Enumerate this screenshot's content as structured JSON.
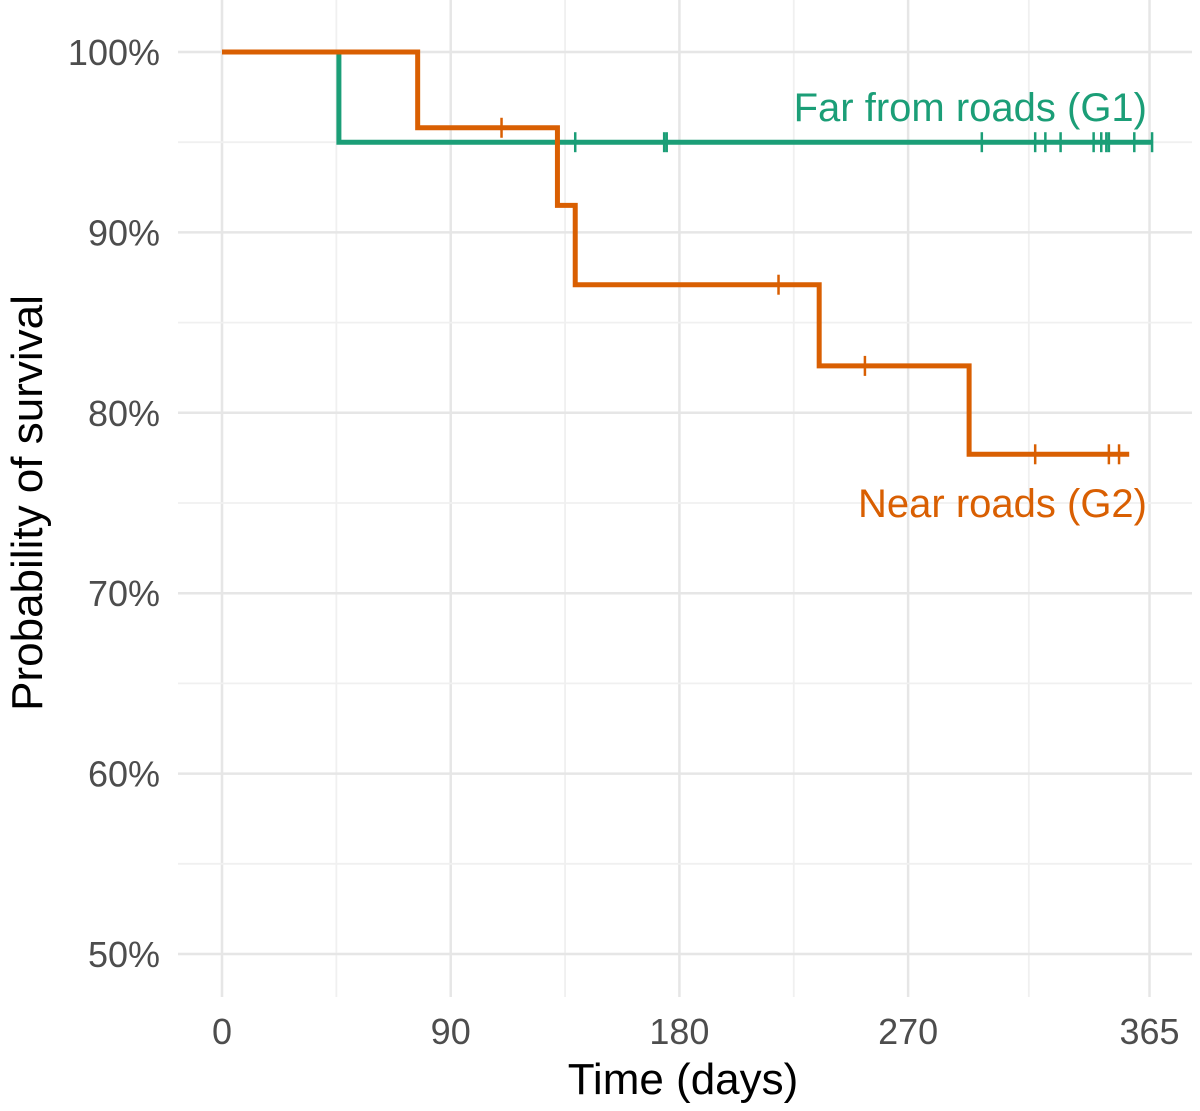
{
  "chart_data": {
    "type": "line",
    "subtype": "kaplan-meier step",
    "xlabel": "Time (days)",
    "ylabel": "Probability of survival",
    "xlim": [
      0,
      365
    ],
    "ylim": [
      0.5,
      1.0
    ],
    "x_ticks": [
      0,
      90,
      180,
      270,
      365
    ],
    "x_tick_labels": [
      "0",
      "90",
      "180",
      "270",
      "365"
    ],
    "y_ticks": [
      0.5,
      0.6,
      0.7,
      0.8,
      0.9,
      1.0
    ],
    "y_tick_labels": [
      "50%",
      "60%",
      "70%",
      "80%",
      "90%",
      "100%"
    ],
    "grid": true,
    "series": [
      {
        "name": "Far from roads (G1)",
        "color": "#1b9e77",
        "steps": [
          {
            "x": 0,
            "y": 1.0
          },
          {
            "x": 46,
            "y": 0.95
          }
        ],
        "end_x": 366,
        "censor_times": [
          139,
          174,
          175,
          299,
          320,
          324,
          330,
          343,
          346,
          348,
          349,
          359,
          366
        ]
      },
      {
        "name": "Near roads (G2)",
        "color": "#d95f02",
        "steps": [
          {
            "x": 0,
            "y": 1.0
          },
          {
            "x": 77,
            "y": 0.958
          },
          {
            "x": 132,
            "y": 0.915
          },
          {
            "x": 139,
            "y": 0.871
          },
          {
            "x": 235,
            "y": 0.826
          },
          {
            "x": 294,
            "y": 0.777
          }
        ],
        "end_x": 357,
        "censor_times": [
          110,
          219,
          253,
          320,
          349,
          353
        ]
      }
    ]
  }
}
